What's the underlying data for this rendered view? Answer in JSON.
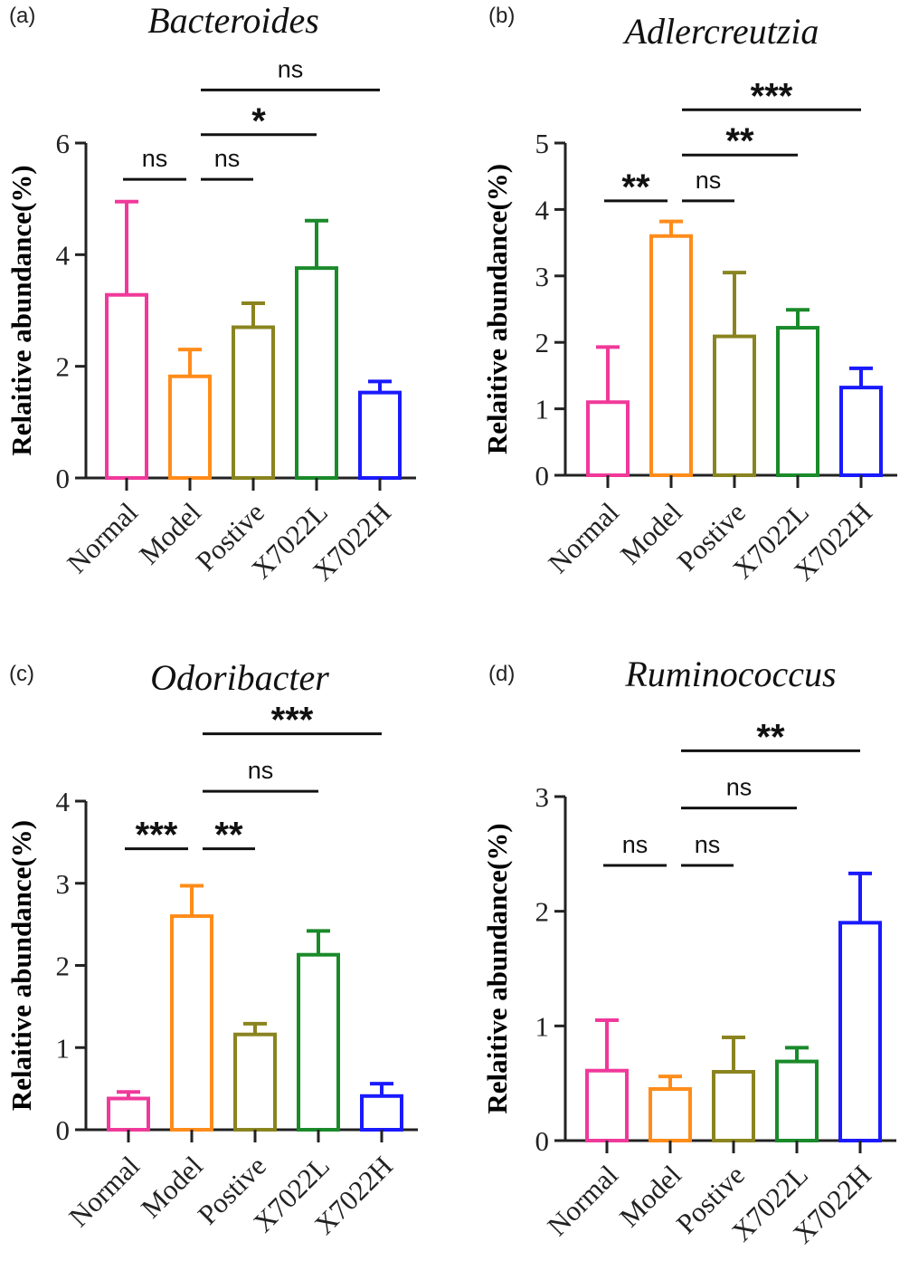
{
  "chart_data": [
    {
      "type": "bar",
      "panel_label": "(a)",
      "title": "Bacteroides",
      "ylabel": "Relaitive abundance(%)",
      "xlabel": "",
      "ylim": [
        0,
        6
      ],
      "yticks": [
        "0",
        "2",
        "4",
        "6"
      ],
      "categories": [
        "Normal",
        "Model",
        "Postive",
        "X7022L",
        "X7022H"
      ],
      "colors": [
        "#f0399a",
        "#ff8c1a",
        "#8a8420",
        "#1a8a2a",
        "#1a1aff"
      ],
      "values": [
        3.28,
        1.82,
        2.7,
        3.76,
        1.53
      ],
      "errors": [
        1.67,
        0.48,
        0.43,
        0.85,
        0.2
      ],
      "fill": "none",
      "grid": false,
      "significance": [
        {
          "from": "Normal",
          "to": "Model",
          "label": "ns",
          "y": 5.35
        },
        {
          "from": "Model",
          "to": "Postive",
          "label": "ns",
          "y": 5.35
        },
        {
          "from": "Model",
          "to": "X7022L",
          "label": "*",
          "y": 6.15
        },
        {
          "from": "Model",
          "to": "X7022H",
          "label": "ns",
          "y": 6.95
        }
      ]
    },
    {
      "type": "bar",
      "panel_label": "(b)",
      "title": "Adlercreutzia",
      "ylabel": "Relaitive abundance(%)",
      "xlabel": "",
      "ylim": [
        0,
        5
      ],
      "yticks": [
        "0",
        "1",
        "2",
        "3",
        "4",
        "5"
      ],
      "categories": [
        "Normal",
        "Model",
        "Postive",
        "X7022L",
        "X7022H"
      ],
      "colors": [
        "#f0399a",
        "#ff8c1a",
        "#8a8420",
        "#1a8a2a",
        "#1a1aff"
      ],
      "values": [
        1.1,
        3.6,
        2.09,
        2.22,
        1.32
      ],
      "errors": [
        0.83,
        0.22,
        0.96,
        0.27,
        0.29
      ],
      "fill": "none",
      "grid": false,
      "significance": [
        {
          "from": "Normal",
          "to": "Model",
          "label": "**",
          "y": 4.13
        },
        {
          "from": "Model",
          "to": "Postive",
          "label": "ns",
          "y": 4.13
        },
        {
          "from": "Model",
          "to": "X7022L",
          "label": "**",
          "y": 4.82
        },
        {
          "from": "Model",
          "to": "X7022H",
          "label": "***",
          "y": 5.5
        }
      ]
    },
    {
      "type": "bar",
      "panel_label": "(c)",
      "title": "Odoribacter",
      "ylabel": "Relaitive abundance(%)",
      "xlabel": "",
      "ylim": [
        0,
        4
      ],
      "yticks": [
        "0",
        "1",
        "2",
        "3",
        "4"
      ],
      "categories": [
        "Normal",
        "Model",
        "Postive",
        "X7022L",
        "X7022H"
      ],
      "colors": [
        "#f0399a",
        "#ff8c1a",
        "#8a8420",
        "#1a8a2a",
        "#1a1aff"
      ],
      "values": [
        0.38,
        2.6,
        1.16,
        2.13,
        0.41
      ],
      "errors": [
        0.08,
        0.37,
        0.13,
        0.29,
        0.15
      ],
      "fill": "none",
      "grid": false,
      "significance": [
        {
          "from": "Normal",
          "to": "Model",
          "label": "***",
          "y": 3.42
        },
        {
          "from": "Model",
          "to": "Postive",
          "label": "**",
          "y": 3.42
        },
        {
          "from": "Model",
          "to": "X7022L",
          "label": "ns",
          "y": 4.12
        },
        {
          "from": "Model",
          "to": "X7022H",
          "label": "***",
          "y": 4.82
        }
      ]
    },
    {
      "type": "bar",
      "panel_label": "(d)",
      "title": "Ruminococcus",
      "ylabel": "Relaitive abundance(%)",
      "xlabel": "",
      "ylim": [
        0,
        3
      ],
      "yticks": [
        "0",
        "1",
        "2",
        "3"
      ],
      "categories": [
        "Normal",
        "Model",
        "Postive",
        "X7022L",
        "X7022H"
      ],
      "colors": [
        "#f0399a",
        "#ff8c1a",
        "#8a8420",
        "#1a8a2a",
        "#1a1aff"
      ],
      "values": [
        0.61,
        0.45,
        0.6,
        0.69,
        1.9
      ],
      "errors": [
        0.44,
        0.11,
        0.3,
        0.12,
        0.43
      ],
      "fill": "none",
      "grid": false,
      "significance": [
        {
          "from": "Normal",
          "to": "Model",
          "label": "ns",
          "y": 2.4
        },
        {
          "from": "Model",
          "to": "Postive",
          "label": "ns",
          "y": 2.4
        },
        {
          "from": "Model",
          "to": "X7022L",
          "label": "ns",
          "y": 2.9
        },
        {
          "from": "Model",
          "to": "X7022H",
          "label": "**",
          "y": 3.4
        }
      ]
    }
  ]
}
